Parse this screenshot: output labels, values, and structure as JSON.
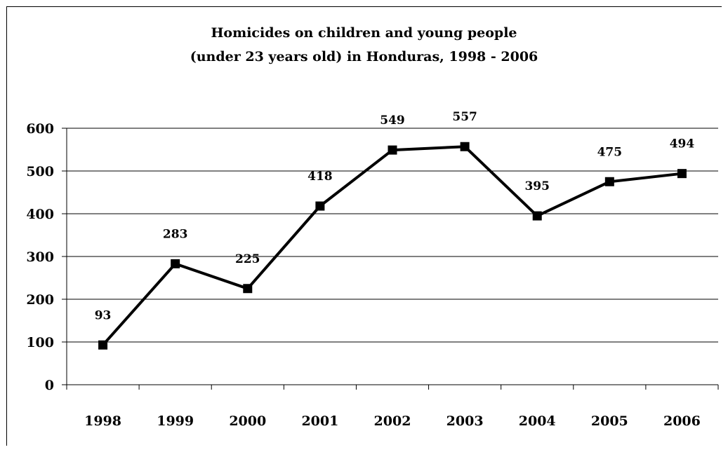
{
  "chart_data": {
    "type": "line",
    "title_lines": [
      "Homicides on children and young people",
      "(under 23 years old) in Honduras, 1998 - 2006"
    ],
    "categories": [
      "1998",
      "1999",
      "2000",
      "2001",
      "2002",
      "2003",
      "2004",
      "2005",
      "2006"
    ],
    "series": [
      {
        "values": [
          93,
          283,
          225,
          418,
          549,
          557,
          395,
          475,
          494
        ]
      }
    ],
    "data_labels": [
      "93",
      "283",
      "225",
      "418",
      "549",
      "557",
      "395",
      "475",
      "494"
    ],
    "y_ticks": [
      "0",
      "100",
      "200",
      "300",
      "400",
      "500",
      "600"
    ],
    "ylim": [
      0,
      600
    ],
    "grid": true,
    "legend": "none",
    "colors": {
      "line": "#000000",
      "marker": "#000000",
      "grid": "#000000"
    }
  }
}
